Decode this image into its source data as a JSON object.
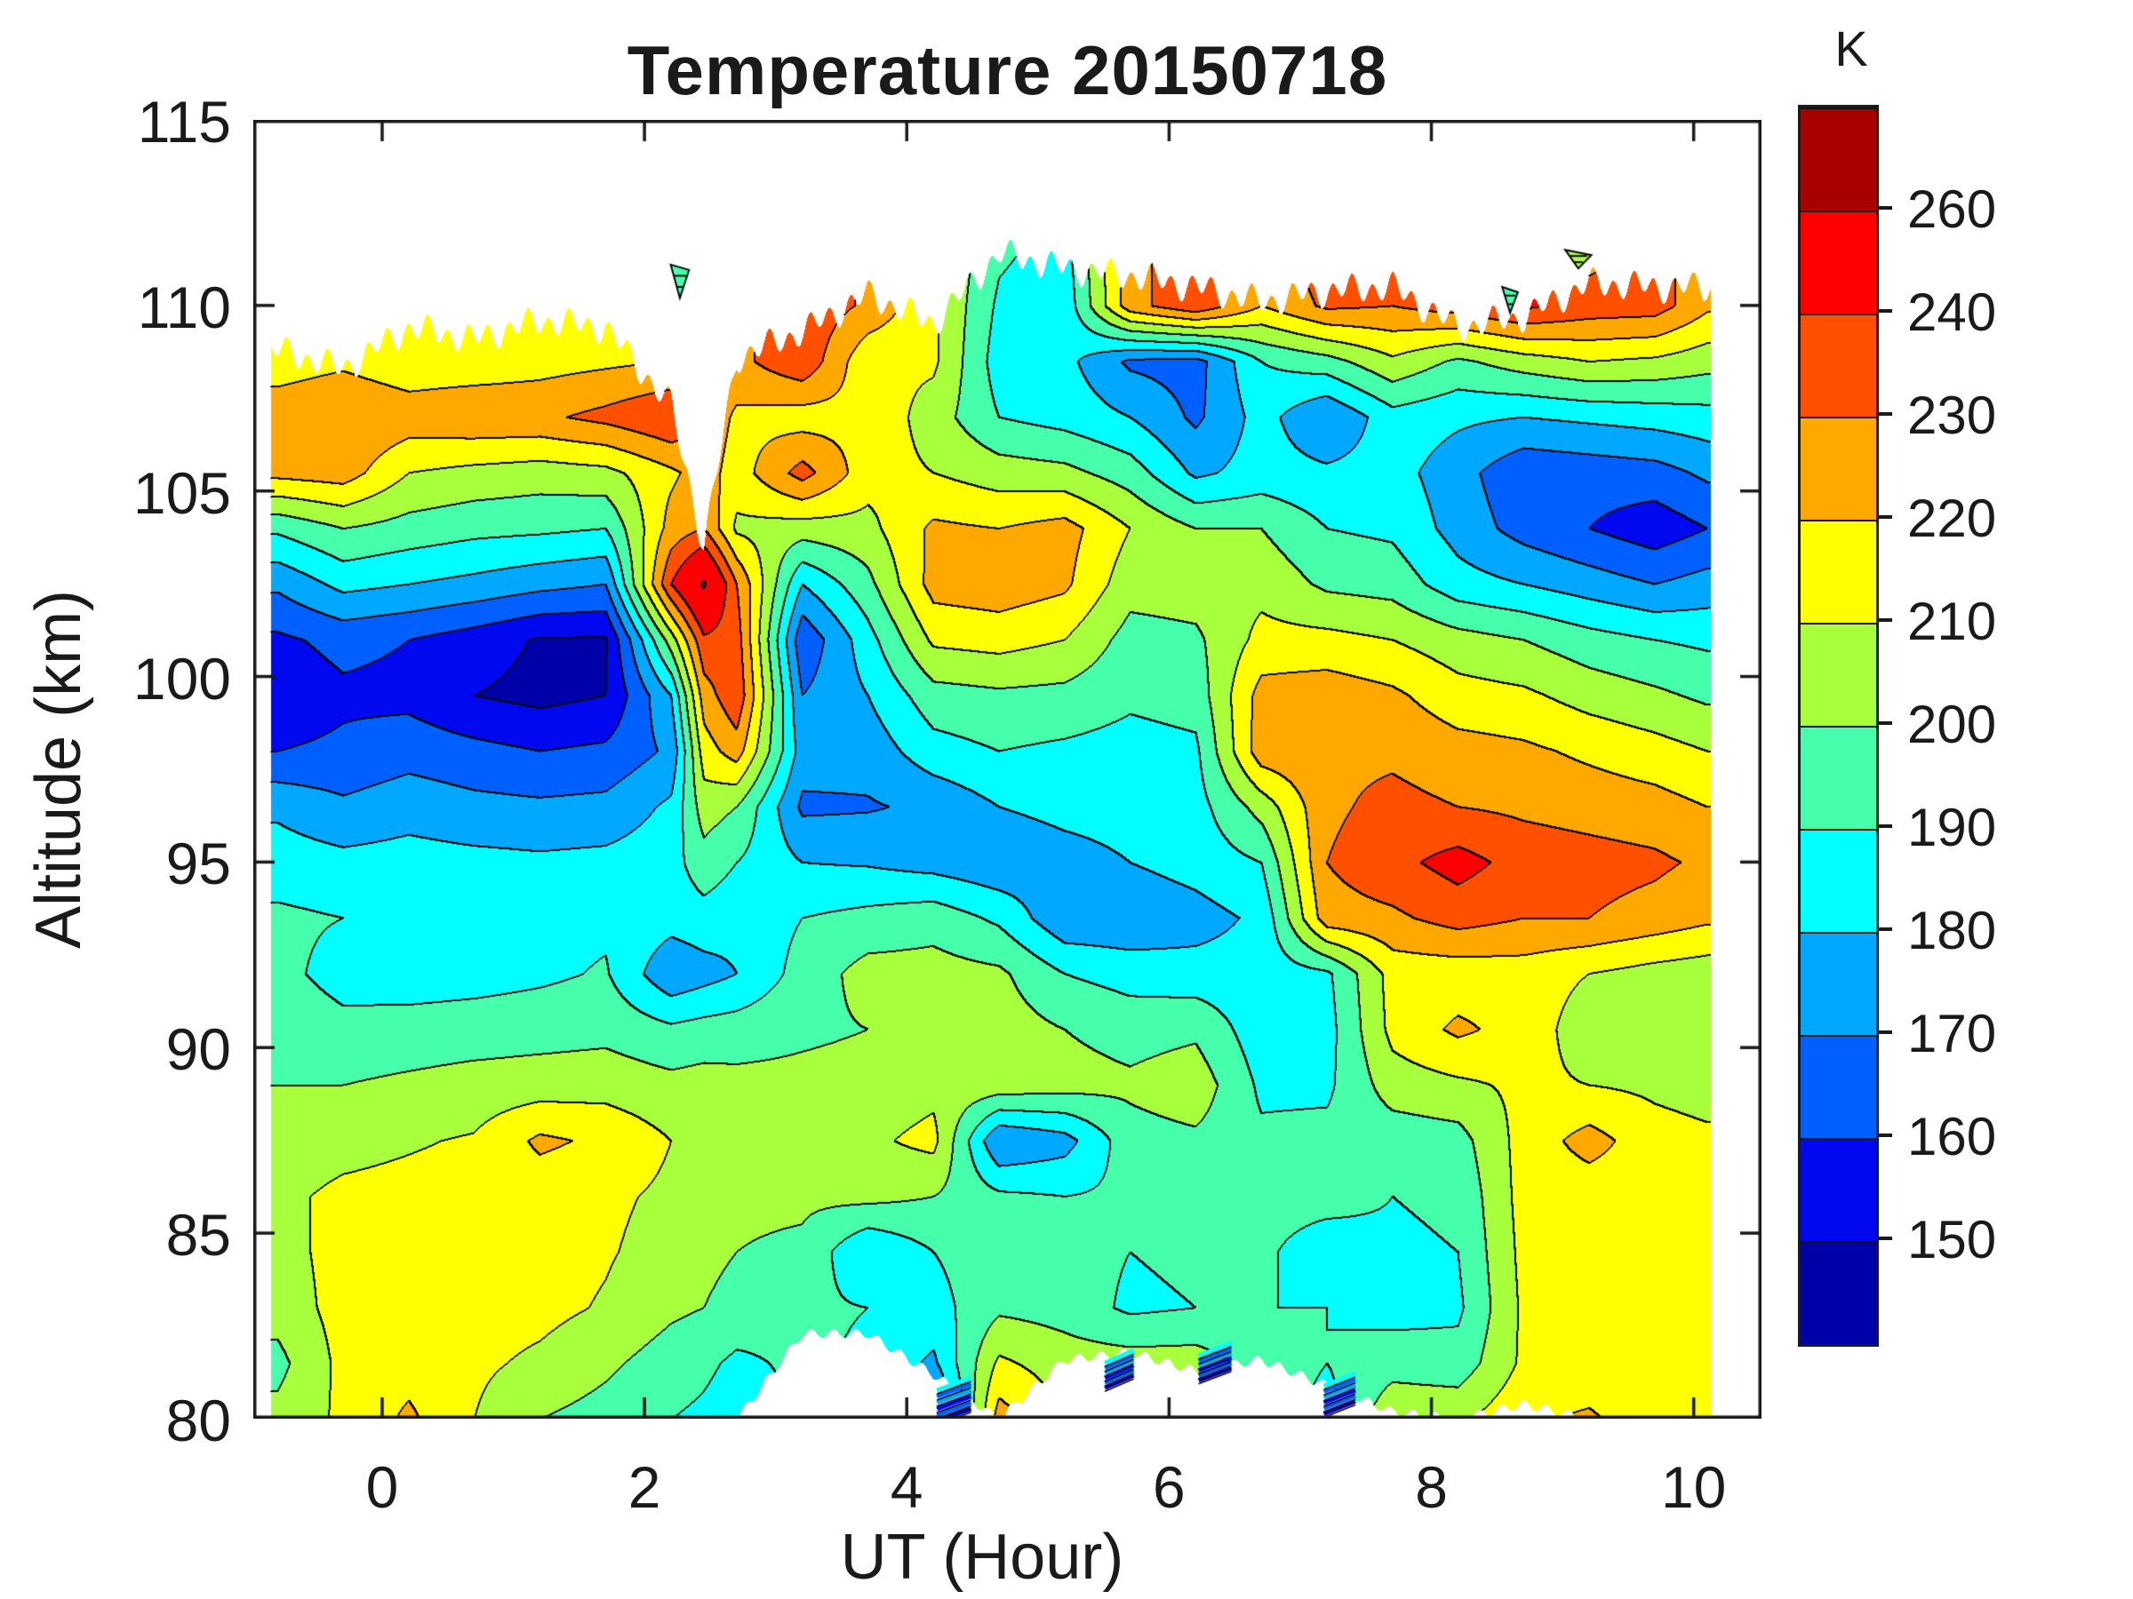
{
  "title": "Temperature 20150718",
  "axes": {
    "x_label": "UT (Hour)",
    "y_label": "Altitude (km)",
    "x_ticks": [
      0,
      2,
      4,
      6,
      8,
      10
    ],
    "y_ticks": [
      80,
      85,
      90,
      95,
      100,
      105,
      110,
      115
    ],
    "x_axis_range": [
      -0.98,
      10.51
    ],
    "y_axis_range": [
      80,
      115
    ],
    "axis_color": "#1a1a1a",
    "background": "#ffffff"
  },
  "colorbar": {
    "unit_label": "K",
    "tick_labels": [
      "260",
      "240",
      "230",
      "220",
      "210",
      "200",
      "190",
      "180",
      "170",
      "160",
      "150"
    ],
    "band_colors_top_to_bottom": [
      "#A80000",
      "#FF0000",
      "#FF5000",
      "#FFA800",
      "#FFFF00",
      "#A8FF3C",
      "#46FFAA",
      "#00FFFF",
      "#00A8FF",
      "#0060FF",
      "#0008F0",
      "#0000A8"
    ]
  },
  "chart_data": {
    "type": "filled_contour_heatmap",
    "title": "Temperature 20150718",
    "xlabel": "UT (Hour)",
    "ylabel": "Altitude (km)",
    "unit": "K",
    "grid": false,
    "legend_position": "right-colorbar",
    "contour_line_color": "#000000",
    "levels": [
      150,
      160,
      170,
      180,
      190,
      200,
      210,
      220,
      230,
      240,
      260
    ],
    "level_colors_low_to_high": [
      "#0000A8",
      "#0008F0",
      "#0060FF",
      "#00A8FF",
      "#00FFFF",
      "#46FFAA",
      "#A8FF3C",
      "#FFFF00",
      "#FFA800",
      "#FF5000",
      "#FF0000",
      "#A80000"
    ],
    "data_ut_range": [
      -0.85,
      10.13
    ],
    "ut": [
      -0.8,
      -0.3,
      0.2,
      0.7,
      1.2,
      1.7,
      2.2,
      2.45,
      2.7,
      3.2,
      3.7,
      4.2,
      4.7,
      5.2,
      5.7,
      6.2,
      6.7,
      7.2,
      7.7,
      8.2,
      8.7,
      9.2,
      9.7,
      10.1
    ],
    "altitude_km": [
      80,
      81.5,
      83,
      84.5,
      86,
      87.5,
      89,
      90.5,
      92,
      93.5,
      95,
      96.5,
      98,
      99.5,
      101,
      102.5,
      104,
      105.5,
      107,
      108.5,
      110,
      111.5
    ],
    "temperature_K": [
      [
        203,
        212,
        222,
        210,
        200,
        196,
        190,
        188,
        185,
        190,
        188,
        160,
        225,
        210,
        205,
        205,
        196,
        186,
        208,
        208,
        218,
        222,
        212,
        210
      ],
      [
        197,
        213,
        216,
        212,
        208,
        202,
        195,
        192,
        188,
        192,
        188,
        178,
        212,
        205,
        205,
        205,
        196,
        190,
        196,
        194,
        212,
        212,
        212,
        211
      ],
      [
        204,
        214,
        215,
        214,
        213,
        209,
        202,
        200,
        196,
        192,
        190,
        186,
        198,
        196,
        188,
        190,
        190,
        190,
        186,
        188,
        212,
        212,
        213,
        213
      ],
      [
        206,
        214,
        215,
        215,
        214,
        211,
        206,
        203,
        200,
        198,
        180,
        190,
        196,
        194,
        190,
        192,
        192,
        184,
        188,
        190,
        213,
        213,
        214,
        214
      ],
      [
        208,
        212,
        213,
        214,
        214,
        212,
        208,
        205,
        202,
        202,
        203,
        200,
        192,
        190,
        192,
        194,
        194,
        194,
        190,
        192,
        214,
        214,
        214,
        213
      ],
      [
        205,
        207,
        209,
        211,
        222,
        218,
        210,
        208,
        205,
        206,
        208,
        213,
        170,
        176,
        196,
        198,
        192,
        193,
        194,
        196,
        214,
        224,
        214,
        212
      ],
      [
        200,
        200,
        202,
        204,
        205,
        206,
        203,
        204,
        203,
        203,
        204,
        207,
        206,
        204,
        202,
        206,
        188,
        188,
        205,
        208,
        212,
        210,
        208,
        206
      ],
      [
        197,
        193,
        194,
        195,
        196,
        197,
        192,
        194,
        195,
        198,
        200,
        206,
        205,
        200,
        196,
        198,
        184,
        186,
        213,
        222,
        216,
        204,
        202,
        200
      ],
      [
        193,
        186,
        185,
        186,
        188,
        191,
        172,
        176,
        180,
        194,
        204,
        204,
        202,
        190,
        186,
        184,
        184,
        188,
        214,
        214,
        215,
        210,
        206,
        204
      ],
      [
        192,
        190,
        188,
        187,
        187,
        188,
        184,
        186,
        183,
        190,
        193,
        196,
        188,
        172,
        172,
        176,
        182,
        226,
        228,
        234,
        230,
        230,
        226,
        222
      ],
      [
        185,
        183,
        184,
        183,
        182,
        183,
        186,
        196,
        190,
        180,
        179,
        176,
        172,
        176,
        180,
        184,
        190,
        230,
        237,
        244,
        236,
        234,
        232,
        228
      ],
      [
        178,
        172,
        176,
        173,
        172,
        173,
        182,
        205,
        200,
        168,
        169,
        172,
        180,
        183,
        184,
        186,
        204,
        228,
        233,
        230,
        228,
        226,
        224,
        220
      ],
      [
        160,
        162,
        166,
        163,
        160,
        162,
        172,
        215,
        225,
        175,
        174,
        186,
        190,
        188,
        186,
        188,
        226,
        228,
        228,
        224,
        222,
        218,
        214,
        210
      ],
      [
        153,
        158,
        157,
        150,
        147,
        150,
        180,
        225,
        238,
        170,
        180,
        196,
        198,
        197,
        192,
        194,
        224,
        226,
        222,
        214,
        212,
        206,
        202,
        198
      ],
      [
        158,
        163,
        160,
        155,
        149,
        149,
        205,
        238,
        235,
        162,
        186,
        212,
        214,
        210,
        196,
        198,
        213,
        213,
        210,
        204,
        200,
        194,
        190,
        188
      ],
      [
        172,
        183,
        180,
        177,
        173,
        170,
        240,
        262,
        230,
        180,
        197,
        224,
        226,
        222,
        204,
        205,
        207,
        198,
        196,
        184,
        180,
        175,
        170,
        174
      ],
      [
        192,
        200,
        196,
        193,
        192,
        190,
        224,
        230,
        208,
        205,
        207,
        222,
        220,
        224,
        210,
        200,
        200,
        190,
        188,
        176,
        166,
        160,
        154,
        160
      ],
      [
        223,
        225,
        210,
        207,
        205,
        207,
        218,
        225,
        215,
        234,
        214,
        210,
        205,
        203,
        195,
        178,
        184,
        182,
        184,
        174,
        162,
        164,
        166,
        172
      ],
      [
        226,
        230,
        226,
        228,
        228,
        233,
        240,
        228,
        218,
        215,
        218,
        205,
        190,
        186,
        180,
        168,
        184,
        170,
        186,
        182,
        180,
        182,
        184,
        186
      ],
      [
        215,
        218,
        213,
        214,
        216,
        218,
        220,
        228,
        227,
        238,
        212,
        212,
        185,
        183,
        168,
        166,
        190,
        196,
        208,
        198,
        205,
        210,
        208,
        204
      ],
      [
        215,
        218,
        213,
        214,
        216,
        218,
        220,
        228,
        227,
        238,
        228,
        212,
        188,
        183,
        226,
        238,
        220,
        232,
        230,
        235,
        242,
        236,
        235,
        222
      ],
      [
        215,
        218,
        213,
        214,
        216,
        218,
        190,
        228,
        227,
        238,
        228,
        212,
        192,
        186,
        226,
        238,
        220,
        238,
        230,
        235,
        242,
        225,
        235,
        222
      ]
    ],
    "top_boundary_km": [
      108.8,
      108.3,
      109.4,
      109.1,
      109.6,
      109.4,
      107.3,
      103.5,
      108.6,
      109.3,
      110.3,
      109.5,
      111.4,
      111.0,
      110.8,
      110.5,
      110.1,
      110.4,
      110.5,
      109.4,
      109.7,
      110.6,
      110.5,
      110.5
    ],
    "bottom_boundary_km": [
      80,
      80,
      80,
      80,
      80,
      80,
      80,
      80,
      80,
      82.3,
      82.3,
      81.2,
      80,
      81.6,
      81.8,
      81.3,
      81.6,
      80.9,
      80.2,
      80,
      80.4,
      80,
      80,
      80
    ],
    "hatch_patches": [
      {
        "ut": 4.36,
        "alt": 80.1,
        "w": 0.26,
        "h": 1.0
      },
      {
        "ut": 5.62,
        "alt": 81.0,
        "w": 0.22,
        "h": 0.8
      },
      {
        "ut": 6.35,
        "alt": 81.2,
        "w": 0.25,
        "h": 0.8
      },
      {
        "ut": 7.3,
        "alt": 80.3,
        "w": 0.24,
        "h": 0.9
      }
    ],
    "isolated_flecks": [
      {
        "ut": 2.27,
        "alt": 111.1,
        "w": 0.14,
        "h": 0.9,
        "color": "#46FFAA"
      },
      {
        "ut": 8.6,
        "alt": 110.5,
        "w": 0.12,
        "h": 0.7,
        "color": "#46FFAA"
      },
      {
        "ut": 9.12,
        "alt": 111.5,
        "w": 0.2,
        "h": 0.5,
        "color": "#A8FF3C"
      }
    ]
  }
}
